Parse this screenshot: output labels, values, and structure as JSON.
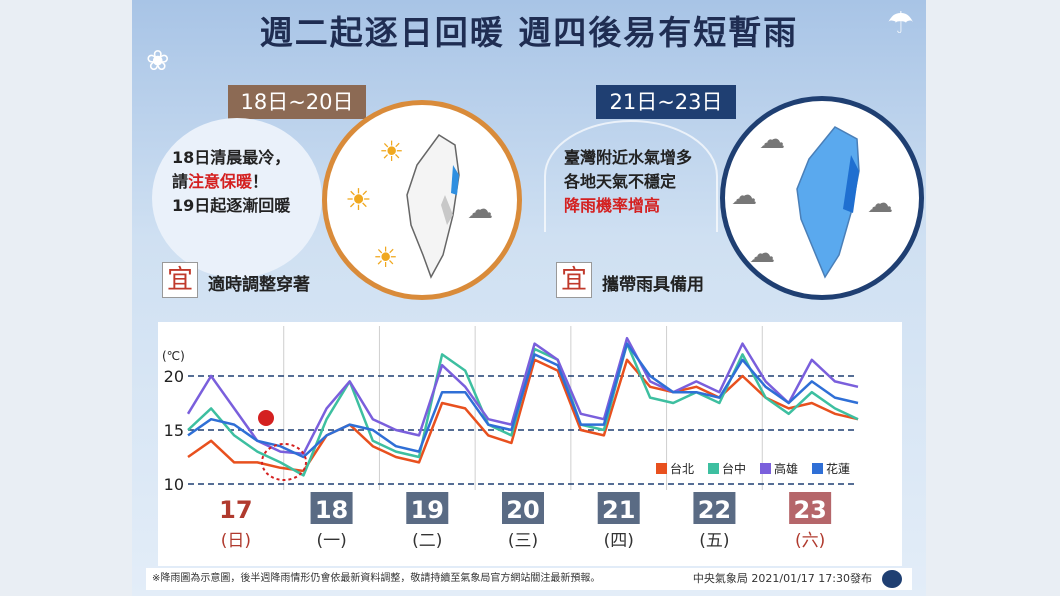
{
  "title": "週二起逐日回暖  週四後易有短暫雨",
  "tags": {
    "left": "18日~20日",
    "right": "21日~23日"
  },
  "left_note": {
    "line1": "18日清晨最冷，",
    "line2_a": "請",
    "line2_b": "注意保暖",
    "line2_c": "！",
    "line3": "19日起逐漸回暖"
  },
  "right_note": {
    "line1": "臺灣附近水氣增多",
    "line2": "各地天氣不穩定",
    "line3": "降雨機率增高"
  },
  "advice": {
    "char": "宜",
    "left": "適時調整穿著",
    "right": "攜帶雨具備用"
  },
  "footer": {
    "disclaimer": "※降雨圖為示意圖，後半週降雨情形仍會依最新資料調整，敬請持續至氣象局官方網站關注最新預報。",
    "issuer": "中央氣象局 2021/01/17 17:30發布"
  },
  "chart_data": {
    "type": "line",
    "ylabel": "(℃)",
    "ylim": [
      10,
      20
    ],
    "yticks": [
      "10",
      "15",
      "20"
    ],
    "days": [
      {
        "date": "17",
        "weekday": "(日)",
        "style": "red"
      },
      {
        "date": "18",
        "weekday": "(一)",
        "style": "gray"
      },
      {
        "date": "19",
        "weekday": "(二)",
        "style": "gray"
      },
      {
        "date": "20",
        "weekday": "(三)",
        "style": "gray"
      },
      {
        "date": "21",
        "weekday": "(四)",
        "style": "gray"
      },
      {
        "date": "22",
        "weekday": "(五)",
        "style": "gray"
      },
      {
        "date": "23",
        "weekday": "(六)",
        "style": "red"
      }
    ],
    "series": [
      {
        "name": "台北",
        "color": "#e8501e",
        "values": [
          12.5,
          14,
          12,
          12,
          11.5,
          11.2,
          14.5,
          15.5,
          13.5,
          12.5,
          12,
          17.5,
          17,
          14.5,
          13.8,
          21.5,
          20.5,
          15,
          14.5,
          21.5,
          19,
          18.5,
          19,
          18,
          20,
          18,
          17,
          17.5,
          16.5,
          16
        ]
      },
      {
        "name": "台中",
        "color": "#3dbfa0",
        "values": [
          15,
          17,
          14.5,
          13,
          12,
          10.8,
          16,
          19.5,
          14,
          13,
          12.5,
          22,
          20.5,
          15.5,
          14.5,
          22.5,
          21.5,
          15.5,
          15,
          23,
          18,
          17.5,
          18.5,
          17.5,
          22,
          18,
          16.5,
          18.5,
          17,
          16
        ]
      },
      {
        "name": "高雄",
        "color": "#7a5fdc",
        "values": [
          16.5,
          20,
          17,
          14,
          13,
          12.8,
          17,
          19.5,
          16,
          15,
          14.5,
          21,
          19,
          16,
          15.5,
          23,
          21.5,
          16.5,
          16,
          23.5,
          19.5,
          18.5,
          19.5,
          18.5,
          23,
          19.5,
          17.5,
          21.5,
          19.5,
          19
        ]
      },
      {
        "name": "花蓮",
        "color": "#2f6fd6",
        "values": [
          14.5,
          16,
          15.5,
          14,
          13.5,
          12.5,
          14.5,
          15.5,
          15,
          13.5,
          13,
          18.5,
          18.5,
          15.5,
          15,
          22,
          21,
          15.5,
          15.5,
          23,
          20,
          18.5,
          18.5,
          18,
          21.5,
          19,
          17.5,
          19.5,
          18,
          17.5
        ]
      }
    ],
    "legend": "bottom-right",
    "grid": true
  }
}
